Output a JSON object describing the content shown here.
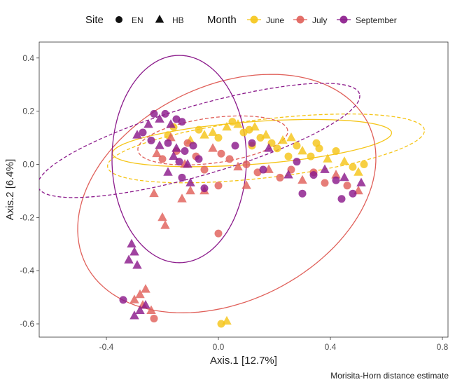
{
  "chart_data": {
    "type": "scatter",
    "xlabel": "Axis.1   [12.7%]",
    "ylabel": "Axis.2   [6.4%]",
    "caption": "Morisita-Horn distance estimate",
    "xlim": [
      -0.64,
      0.82
    ],
    "ylim": [
      -0.65,
      0.46
    ],
    "x_ticks": [
      -0.4,
      0.0,
      0.4,
      0.8
    ],
    "x_tick_labels": [
      "-0.4",
      "0.0",
      "0.4",
      "0.8"
    ],
    "y_ticks": [
      0.4,
      0.2,
      0.0,
      -0.2,
      -0.4,
      -0.6
    ],
    "y_tick_labels": [
      "0.4",
      "0.2",
      "0.0",
      "-0.2",
      "-0.4",
      "-0.6"
    ],
    "grid": false,
    "legend_position": "top",
    "legend": {
      "shape_title": "Site",
      "shape_entries": [
        {
          "label": "EN",
          "shape": "circle"
        },
        {
          "label": "HB",
          "shape": "triangle"
        }
      ],
      "color_title": "Month"
    },
    "series": [
      {
        "name": "June",
        "color": "#F5C518",
        "points": [
          {
            "x": -0.07,
            "y": 0.13,
            "shape": "circle"
          },
          {
            "x": -0.05,
            "y": 0.11,
            "shape": "triangle"
          },
          {
            "x": -0.02,
            "y": 0.12,
            "shape": "triangle"
          },
          {
            "x": 0.0,
            "y": 0.1,
            "shape": "circle"
          },
          {
            "x": 0.03,
            "y": 0.14,
            "shape": "triangle"
          },
          {
            "x": 0.05,
            "y": 0.16,
            "shape": "circle"
          },
          {
            "x": 0.07,
            "y": 0.15,
            "shape": "triangle"
          },
          {
            "x": 0.09,
            "y": 0.12,
            "shape": "circle"
          },
          {
            "x": 0.11,
            "y": 0.13,
            "shape": "circle"
          },
          {
            "x": 0.13,
            "y": 0.14,
            "shape": "triangle"
          },
          {
            "x": 0.15,
            "y": 0.1,
            "shape": "circle"
          },
          {
            "x": 0.17,
            "y": 0.11,
            "shape": "triangle"
          },
          {
            "x": 0.19,
            "y": 0.08,
            "shape": "circle"
          },
          {
            "x": 0.21,
            "y": 0.06,
            "shape": "circle"
          },
          {
            "x": 0.23,
            "y": 0.09,
            "shape": "triangle"
          },
          {
            "x": 0.25,
            "y": 0.03,
            "shape": "circle"
          },
          {
            "x": 0.28,
            "y": 0.07,
            "shape": "circle"
          },
          {
            "x": 0.3,
            "y": 0.05,
            "shape": "triangle"
          },
          {
            "x": 0.33,
            "y": 0.03,
            "shape": "circle"
          },
          {
            "x": 0.36,
            "y": 0.06,
            "shape": "circle"
          },
          {
            "x": 0.39,
            "y": 0.02,
            "shape": "triangle"
          },
          {
            "x": 0.42,
            "y": 0.05,
            "shape": "circle"
          },
          {
            "x": 0.45,
            "y": 0.01,
            "shape": "triangle"
          },
          {
            "x": 0.48,
            "y": -0.01,
            "shape": "circle"
          },
          {
            "x": 0.5,
            "y": -0.03,
            "shape": "triangle"
          },
          {
            "x": 0.52,
            "y": 0.0,
            "shape": "circle"
          },
          {
            "x": 0.35,
            "y": 0.08,
            "shape": "circle"
          },
          {
            "x": 0.26,
            "y": 0.1,
            "shape": "triangle"
          },
          {
            "x": 0.12,
            "y": 0.07,
            "shape": "circle"
          },
          {
            "x": -0.1,
            "y": 0.09,
            "shape": "triangle"
          },
          {
            "x": -0.16,
            "y": 0.14,
            "shape": "circle"
          },
          {
            "x": -0.18,
            "y": 0.11,
            "shape": "circle"
          },
          {
            "x": 0.01,
            "y": -0.6,
            "shape": "circle"
          },
          {
            "x": 0.03,
            "y": -0.59,
            "shape": "triangle"
          }
        ]
      },
      {
        "name": "July",
        "color": "#E0605A",
        "points": [
          {
            "x": -0.22,
            "y": 0.04,
            "shape": "triangle"
          },
          {
            "x": -0.2,
            "y": 0.02,
            "shape": "circle"
          },
          {
            "x": -0.15,
            "y": 0.05,
            "shape": "circle"
          },
          {
            "x": -0.12,
            "y": 0.0,
            "shape": "triangle"
          },
          {
            "x": -0.08,
            "y": 0.03,
            "shape": "circle"
          },
          {
            "x": -0.05,
            "y": -0.02,
            "shape": "circle"
          },
          {
            "x": -0.02,
            "y": 0.06,
            "shape": "triangle"
          },
          {
            "x": 0.01,
            "y": 0.04,
            "shape": "circle"
          },
          {
            "x": 0.04,
            "y": 0.02,
            "shape": "circle"
          },
          {
            "x": 0.07,
            "y": -0.01,
            "shape": "triangle"
          },
          {
            "x": 0.1,
            "y": 0.0,
            "shape": "circle"
          },
          {
            "x": 0.14,
            "y": -0.03,
            "shape": "circle"
          },
          {
            "x": 0.18,
            "y": -0.02,
            "shape": "triangle"
          },
          {
            "x": 0.22,
            "y": -0.05,
            "shape": "circle"
          },
          {
            "x": 0.26,
            "y": -0.02,
            "shape": "circle"
          },
          {
            "x": 0.3,
            "y": -0.06,
            "shape": "triangle"
          },
          {
            "x": 0.34,
            "y": -0.03,
            "shape": "circle"
          },
          {
            "x": 0.38,
            "y": -0.07,
            "shape": "circle"
          },
          {
            "x": 0.42,
            "y": -0.04,
            "shape": "triangle"
          },
          {
            "x": 0.46,
            "y": -0.08,
            "shape": "circle"
          },
          {
            "x": 0.5,
            "y": -0.1,
            "shape": "triangle"
          },
          {
            "x": 0.1,
            "y": -0.08,
            "shape": "triangle"
          },
          {
            "x": 0.0,
            "y": -0.08,
            "shape": "circle"
          },
          {
            "x": -0.05,
            "y": -0.1,
            "shape": "triangle"
          },
          {
            "x": -0.1,
            "y": -0.1,
            "shape": "triangle"
          },
          {
            "x": -0.23,
            "y": -0.11,
            "shape": "triangle"
          },
          {
            "x": -0.13,
            "y": -0.13,
            "shape": "triangle"
          },
          {
            "x": -0.2,
            "y": -0.2,
            "shape": "triangle"
          },
          {
            "x": -0.19,
            "y": -0.23,
            "shape": "triangle"
          },
          {
            "x": 0.0,
            "y": -0.26,
            "shape": "circle"
          },
          {
            "x": -0.26,
            "y": -0.47,
            "shape": "triangle"
          },
          {
            "x": -0.28,
            "y": -0.49,
            "shape": "triangle"
          },
          {
            "x": -0.3,
            "y": -0.51,
            "shape": "triangle"
          },
          {
            "x": -0.27,
            "y": -0.53,
            "shape": "triangle"
          },
          {
            "x": -0.24,
            "y": -0.55,
            "shape": "triangle"
          },
          {
            "x": -0.23,
            "y": -0.58,
            "shape": "circle"
          },
          {
            "x": -0.17,
            "y": 0.1,
            "shape": "triangle"
          },
          {
            "x": -0.11,
            "y": 0.08,
            "shape": "circle"
          }
        ]
      },
      {
        "name": "September",
        "color": "#8B1A8B",
        "points": [
          {
            "x": -0.23,
            "y": 0.19,
            "shape": "circle"
          },
          {
            "x": -0.21,
            "y": 0.17,
            "shape": "triangle"
          },
          {
            "x": -0.19,
            "y": 0.19,
            "shape": "circle"
          },
          {
            "x": -0.17,
            "y": 0.15,
            "shape": "triangle"
          },
          {
            "x": -0.15,
            "y": 0.17,
            "shape": "circle"
          },
          {
            "x": -0.13,
            "y": 0.16,
            "shape": "circle"
          },
          {
            "x": -0.25,
            "y": 0.15,
            "shape": "triangle"
          },
          {
            "x": -0.27,
            "y": 0.12,
            "shape": "circle"
          },
          {
            "x": -0.29,
            "y": 0.11,
            "shape": "triangle"
          },
          {
            "x": -0.24,
            "y": 0.09,
            "shape": "circle"
          },
          {
            "x": -0.21,
            "y": 0.07,
            "shape": "triangle"
          },
          {
            "x": -0.18,
            "y": 0.08,
            "shape": "circle"
          },
          {
            "x": -0.15,
            "y": 0.06,
            "shape": "triangle"
          },
          {
            "x": -0.12,
            "y": 0.05,
            "shape": "circle"
          },
          {
            "x": -0.09,
            "y": 0.07,
            "shape": "circle"
          },
          {
            "x": -0.16,
            "y": 0.03,
            "shape": "triangle"
          },
          {
            "x": -0.14,
            "y": 0.01,
            "shape": "circle"
          },
          {
            "x": -0.11,
            "y": 0.0,
            "shape": "triangle"
          },
          {
            "x": -0.07,
            "y": 0.02,
            "shape": "circle"
          },
          {
            "x": -0.18,
            "y": -0.03,
            "shape": "triangle"
          },
          {
            "x": -0.13,
            "y": -0.05,
            "shape": "circle"
          },
          {
            "x": -0.1,
            "y": -0.07,
            "shape": "triangle"
          },
          {
            "x": -0.05,
            "y": -0.09,
            "shape": "circle"
          },
          {
            "x": 0.06,
            "y": 0.07,
            "shape": "circle"
          },
          {
            "x": 0.12,
            "y": 0.08,
            "shape": "circle"
          },
          {
            "x": 0.18,
            "y": 0.06,
            "shape": "triangle"
          },
          {
            "x": 0.16,
            "y": -0.02,
            "shape": "circle"
          },
          {
            "x": 0.25,
            "y": -0.04,
            "shape": "triangle"
          },
          {
            "x": 0.28,
            "y": 0.01,
            "shape": "circle"
          },
          {
            "x": 0.34,
            "y": -0.04,
            "shape": "circle"
          },
          {
            "x": 0.38,
            "y": -0.02,
            "shape": "triangle"
          },
          {
            "x": 0.42,
            "y": -0.06,
            "shape": "circle"
          },
          {
            "x": 0.45,
            "y": -0.05,
            "shape": "triangle"
          },
          {
            "x": 0.48,
            "y": -0.11,
            "shape": "circle"
          },
          {
            "x": 0.51,
            "y": -0.07,
            "shape": "triangle"
          },
          {
            "x": 0.3,
            "y": -0.11,
            "shape": "circle"
          },
          {
            "x": 0.44,
            "y": -0.13,
            "shape": "circle"
          },
          {
            "x": -0.31,
            "y": -0.3,
            "shape": "triangle"
          },
          {
            "x": -0.3,
            "y": -0.33,
            "shape": "triangle"
          },
          {
            "x": -0.32,
            "y": -0.36,
            "shape": "triangle"
          },
          {
            "x": -0.29,
            "y": -0.38,
            "shape": "triangle"
          },
          {
            "x": -0.34,
            "y": -0.51,
            "shape": "circle"
          },
          {
            "x": -0.28,
            "y": -0.55,
            "shape": "triangle"
          },
          {
            "x": -0.3,
            "y": -0.57,
            "shape": "triangle"
          },
          {
            "x": -0.26,
            "y": -0.53,
            "shape": "triangle"
          }
        ]
      }
    ],
    "ellipses": [
      {
        "series": "June",
        "style": "solid",
        "cx": 0.12,
        "cy": 0.08,
        "rx": 0.5,
        "ry": 0.08,
        "rotation_deg": -4.5
      },
      {
        "series": "June",
        "style": "dashed",
        "cx": 0.17,
        "cy": 0.06,
        "rx": 0.57,
        "ry": 0.11,
        "rotation_deg": -7
      },
      {
        "series": "July",
        "style": "solid",
        "cx": 0.03,
        "cy": -0.11,
        "rx": 0.57,
        "ry": 0.4,
        "rotation_deg": -30
      },
      {
        "series": "July",
        "style": "dashed",
        "cx": -0.02,
        "cy": 0.09,
        "rx": 0.27,
        "ry": 0.085,
        "rotation_deg": -8
      },
      {
        "series": "September",
        "style": "solid",
        "cx": -0.14,
        "cy": 0.02,
        "rx": 0.24,
        "ry": 0.39,
        "rotation_deg": 0
      },
      {
        "series": "September",
        "style": "dashed",
        "cx": -0.07,
        "cy": 0.09,
        "rx": 0.6,
        "ry": 0.13,
        "rotation_deg": -17
      }
    ]
  }
}
